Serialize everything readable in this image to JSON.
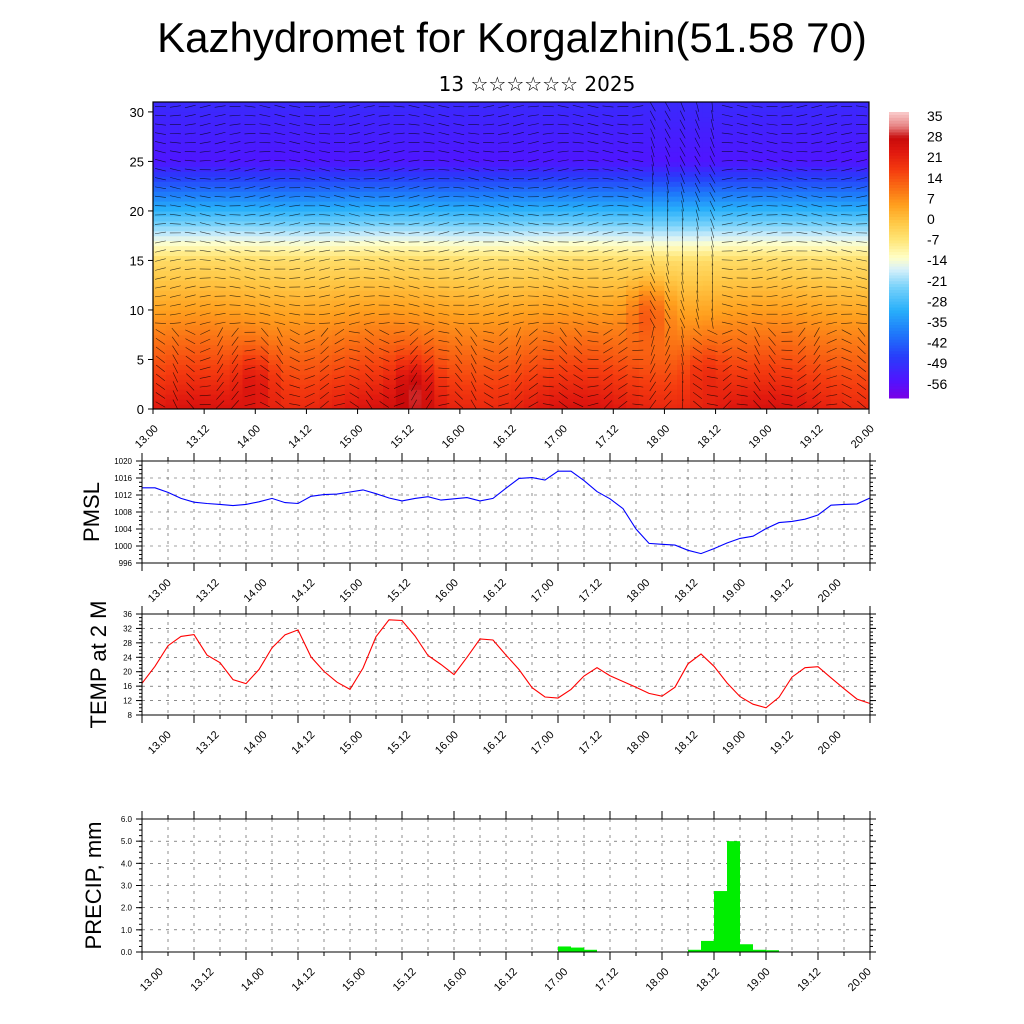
{
  "title": "Kazhydromet for Korgalzhin(51.58 70)",
  "subtitle": "13 ☆☆☆☆☆☆ 2025",
  "x_tick_labels": [
    "13.00",
    "13.12",
    "14.00",
    "14.12",
    "15.00",
    "15.12",
    "16.00",
    "16.12",
    "17.00",
    "17.12",
    "18.00",
    "18.12",
    "19.00",
    "19.12",
    "20.00"
  ],
  "chart_data": [
    {
      "type": "heatmap",
      "name": "temperature-wind cross-section",
      "x_ticks": [
        "13.00",
        "13.12",
        "14.00",
        "14.12",
        "15.00",
        "15.12",
        "16.00",
        "16.12",
        "17.00",
        "17.12",
        "18.00",
        "18.12",
        "19.00",
        "19.12",
        "20.00"
      ],
      "y_ticks": [
        0,
        5,
        10,
        15,
        20,
        25,
        30
      ],
      "ylim": [
        0,
        31
      ],
      "colorbar": {
        "labels": [
          "35",
          "28",
          "21",
          "14",
          "7",
          "0",
          "-7",
          "-14",
          "-21",
          "-28",
          "-35",
          "-42",
          "-49",
          "-56"
        ],
        "range": [
          -60,
          38
        ]
      },
      "overlay": "wind-vectors",
      "features": {
        "warm_cores": [
          {
            "x": 2.0,
            "y": 2.5,
            "value": 30
          },
          {
            "x": 5.1,
            "y": 2.0,
            "value": 35
          },
          {
            "x": 9.7,
            "y": 9.5,
            "value": 22
          },
          {
            "x": 10.8,
            "y": 3.0,
            "value": 25
          }
        ]
      }
    },
    {
      "type": "line",
      "ylabel": "PMSL",
      "color": "#0000ff",
      "ylim": [
        996,
        1020
      ],
      "y_ticks": [
        996,
        1000,
        1004,
        1008,
        1012,
        1016,
        1020
      ],
      "x_ticks": [
        "13.00",
        "13.12",
        "14.00",
        "14.12",
        "15.00",
        "15.12",
        "16.00",
        "16.12",
        "17.00",
        "17.12",
        "18.00",
        "18.12",
        "19.00",
        "19.12",
        "20.00"
      ],
      "x": [
        0,
        0.25,
        0.5,
        0.75,
        1,
        1.25,
        1.5,
        1.75,
        2,
        2.25,
        2.5,
        2.75,
        3,
        3.25,
        3.5,
        3.75,
        4,
        4.25,
        4.5,
        4.75,
        5,
        5.25,
        5.5,
        5.75,
        6,
        6.25,
        6.5,
        6.75,
        7,
        7.25,
        7.5,
        7.75,
        8,
        8.25,
        8.5,
        8.75,
        9,
        9.25,
        9.5,
        9.75,
        10,
        10.25,
        10.5,
        10.75,
        11,
        11.25,
        11.5,
        11.75,
        12,
        12.25,
        12.5,
        12.75,
        13,
        13.25,
        13.5,
        13.75,
        14
      ],
      "values": [
        1013.7,
        1013.7,
        1012.6,
        1011.2,
        1010.3,
        1010.0,
        1009.8,
        1009.5,
        1009.8,
        1010.4,
        1011.2,
        1010.2,
        1010.0,
        1011.7,
        1012.1,
        1012.2,
        1012.7,
        1013.2,
        1012.3,
        1011.3,
        1010.6,
        1011.2,
        1011.6,
        1010.8,
        1011.1,
        1011.4,
        1010.6,
        1011.2,
        1013.6,
        1015.9,
        1016.1,
        1015.5,
        1017.6,
        1017.6,
        1015.4,
        1012.8,
        1011.1,
        1008.8,
        1004.0,
        1000.6,
        1000.4,
        1000.2,
        999.0,
        998.2,
        999.4,
        1000.7,
        1001.8,
        1002.3,
        1004.1,
        1005.5,
        1005.8,
        1006.3,
        1007.3,
        1009.6,
        1009.8,
        1009.9,
        1011.3
      ]
    },
    {
      "type": "line",
      "ylabel": "TEMP at 2 M",
      "color": "#ff0000",
      "ylim": [
        8,
        36
      ],
      "y_ticks": [
        8,
        12,
        16,
        20,
        24,
        28,
        32,
        36
      ],
      "x_ticks": [
        "13.00",
        "13.12",
        "14.00",
        "14.12",
        "15.00",
        "15.12",
        "16.00",
        "16.12",
        "17.00",
        "17.12",
        "18.00",
        "18.12",
        "19.00",
        "19.12",
        "20.00"
      ],
      "x": [
        0,
        0.25,
        0.5,
        0.75,
        1,
        1.25,
        1.5,
        1.75,
        2,
        2.25,
        2.5,
        2.75,
        3,
        3.25,
        3.5,
        3.75,
        4,
        4.25,
        4.5,
        4.75,
        5,
        5.25,
        5.5,
        5.75,
        6,
        6.25,
        6.5,
        6.75,
        7,
        7.25,
        7.5,
        7.75,
        8,
        8.25,
        8.5,
        8.75,
        9,
        9.25,
        9.5,
        9.75,
        10,
        10.25,
        10.5,
        10.75,
        11,
        11.25,
        11.5,
        11.75,
        12,
        12.25,
        12.5,
        12.75,
        13,
        13.25,
        13.5,
        13.75,
        14
      ],
      "values": [
        16.8,
        21.5,
        27.2,
        29.8,
        30.3,
        24.6,
        22.5,
        17.8,
        16.7,
        20.6,
        26.6,
        30.2,
        31.6,
        24.1,
        20.1,
        17.1,
        15.1,
        21.0,
        29.7,
        34.4,
        34.2,
        29.9,
        24.5,
        22.0,
        19.2,
        24.0,
        29.1,
        28.8,
        24.6,
        20.6,
        15.6,
        13.0,
        12.7,
        15.1,
        18.8,
        21.1,
        18.9,
        17.3,
        15.7,
        14.0,
        13.2,
        15.7,
        22.2,
        24.9,
        21.5,
        16.9,
        13.1,
        11.0,
        10.0,
        12.9,
        18.5,
        21.1,
        21.4,
        18.3,
        15.3,
        12.4,
        11.2
      ]
    },
    {
      "type": "bar",
      "ylabel": "PRECIP, mm",
      "color": "#00ee00",
      "ylim": [
        0,
        6
      ],
      "y_ticks": [
        "0.0",
        "1.0",
        "2.0",
        "3.0",
        "4.0",
        "5.0",
        "6.0"
      ],
      "x_ticks": [
        "13.00",
        "13.12",
        "14.00",
        "14.12",
        "15.00",
        "15.12",
        "16.00",
        "16.12",
        "17.00",
        "17.12",
        "18.00",
        "18.12",
        "19.00",
        "19.12",
        "20.00"
      ],
      "bars": [
        {
          "x": 8.0,
          "value": 0.25
        },
        {
          "x": 8.25,
          "value": 0.2
        },
        {
          "x": 8.5,
          "value": 0.1
        },
        {
          "x": 10.5,
          "value": 0.1
        },
        {
          "x": 10.75,
          "value": 0.5
        },
        {
          "x": 11.0,
          "value": 2.75
        },
        {
          "x": 11.25,
          "value": 5.0
        },
        {
          "x": 11.5,
          "value": 0.35
        },
        {
          "x": 11.75,
          "value": 0.1
        },
        {
          "x": 12.0,
          "value": 0.08
        }
      ]
    }
  ]
}
